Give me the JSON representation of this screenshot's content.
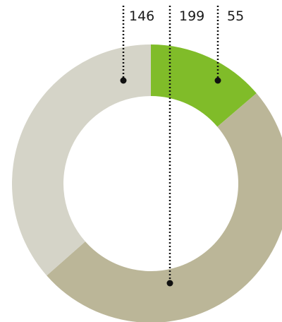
{
  "chart_data": {
    "type": "pie",
    "style": "donut",
    "slices": [
      {
        "label": "55",
        "value": 55,
        "color": "#80bc29"
      },
      {
        "label": "199",
        "value": 199,
        "color": "#bbb698"
      },
      {
        "label": "146",
        "value": 146,
        "color": "#d5d4c8"
      }
    ],
    "start": "top",
    "direction": "clockwise",
    "legend": "none"
  }
}
